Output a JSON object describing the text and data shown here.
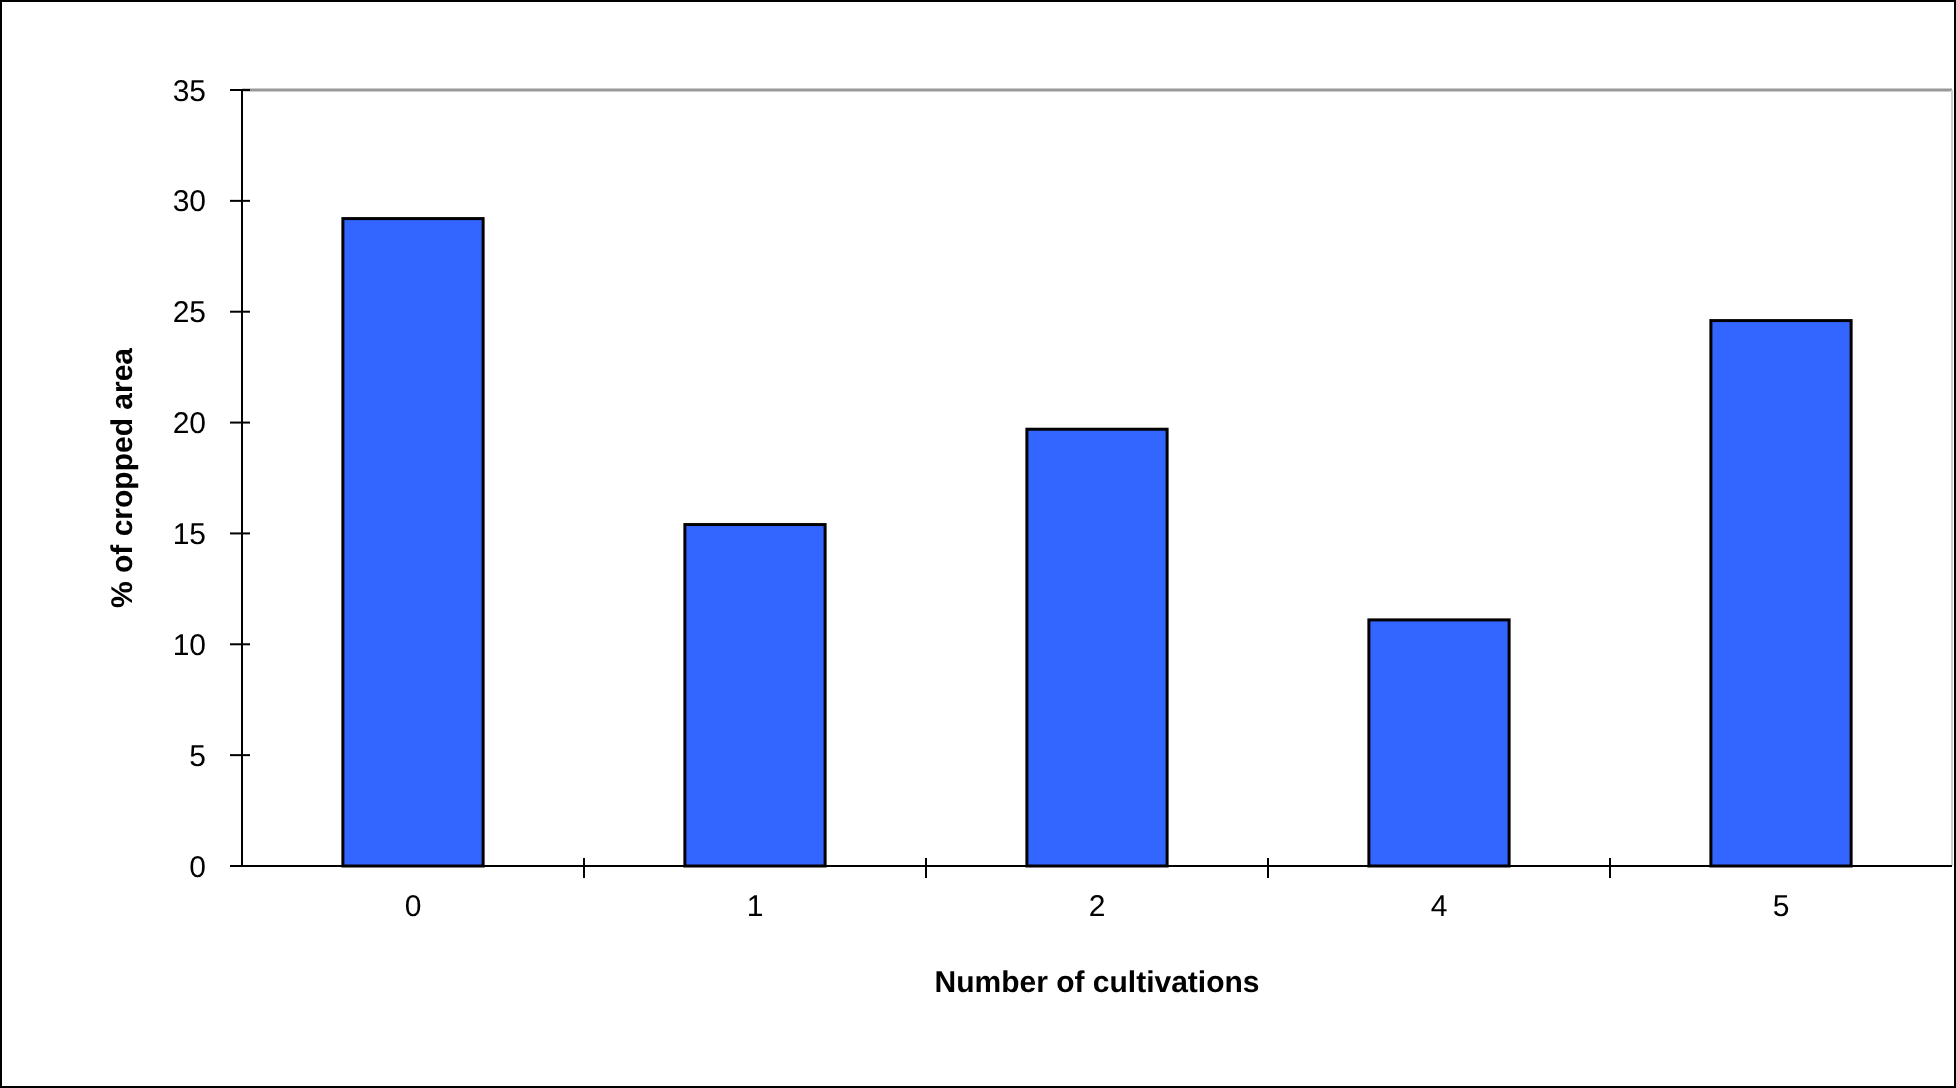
{
  "chart_data": {
    "type": "bar",
    "xlabel": "Number of cultivations",
    "ylabel": "% of cropped area",
    "categories": [
      "0",
      "1",
      "2",
      "4",
      "5"
    ],
    "values": [
      29.2,
      15.4,
      19.7,
      11.1,
      24.6
    ],
    "color": "#3366ff",
    "ylim": [
      0,
      35
    ],
    "yticks": [
      0,
      5,
      10,
      15,
      20,
      25,
      30,
      35
    ],
    "grid": false
  }
}
